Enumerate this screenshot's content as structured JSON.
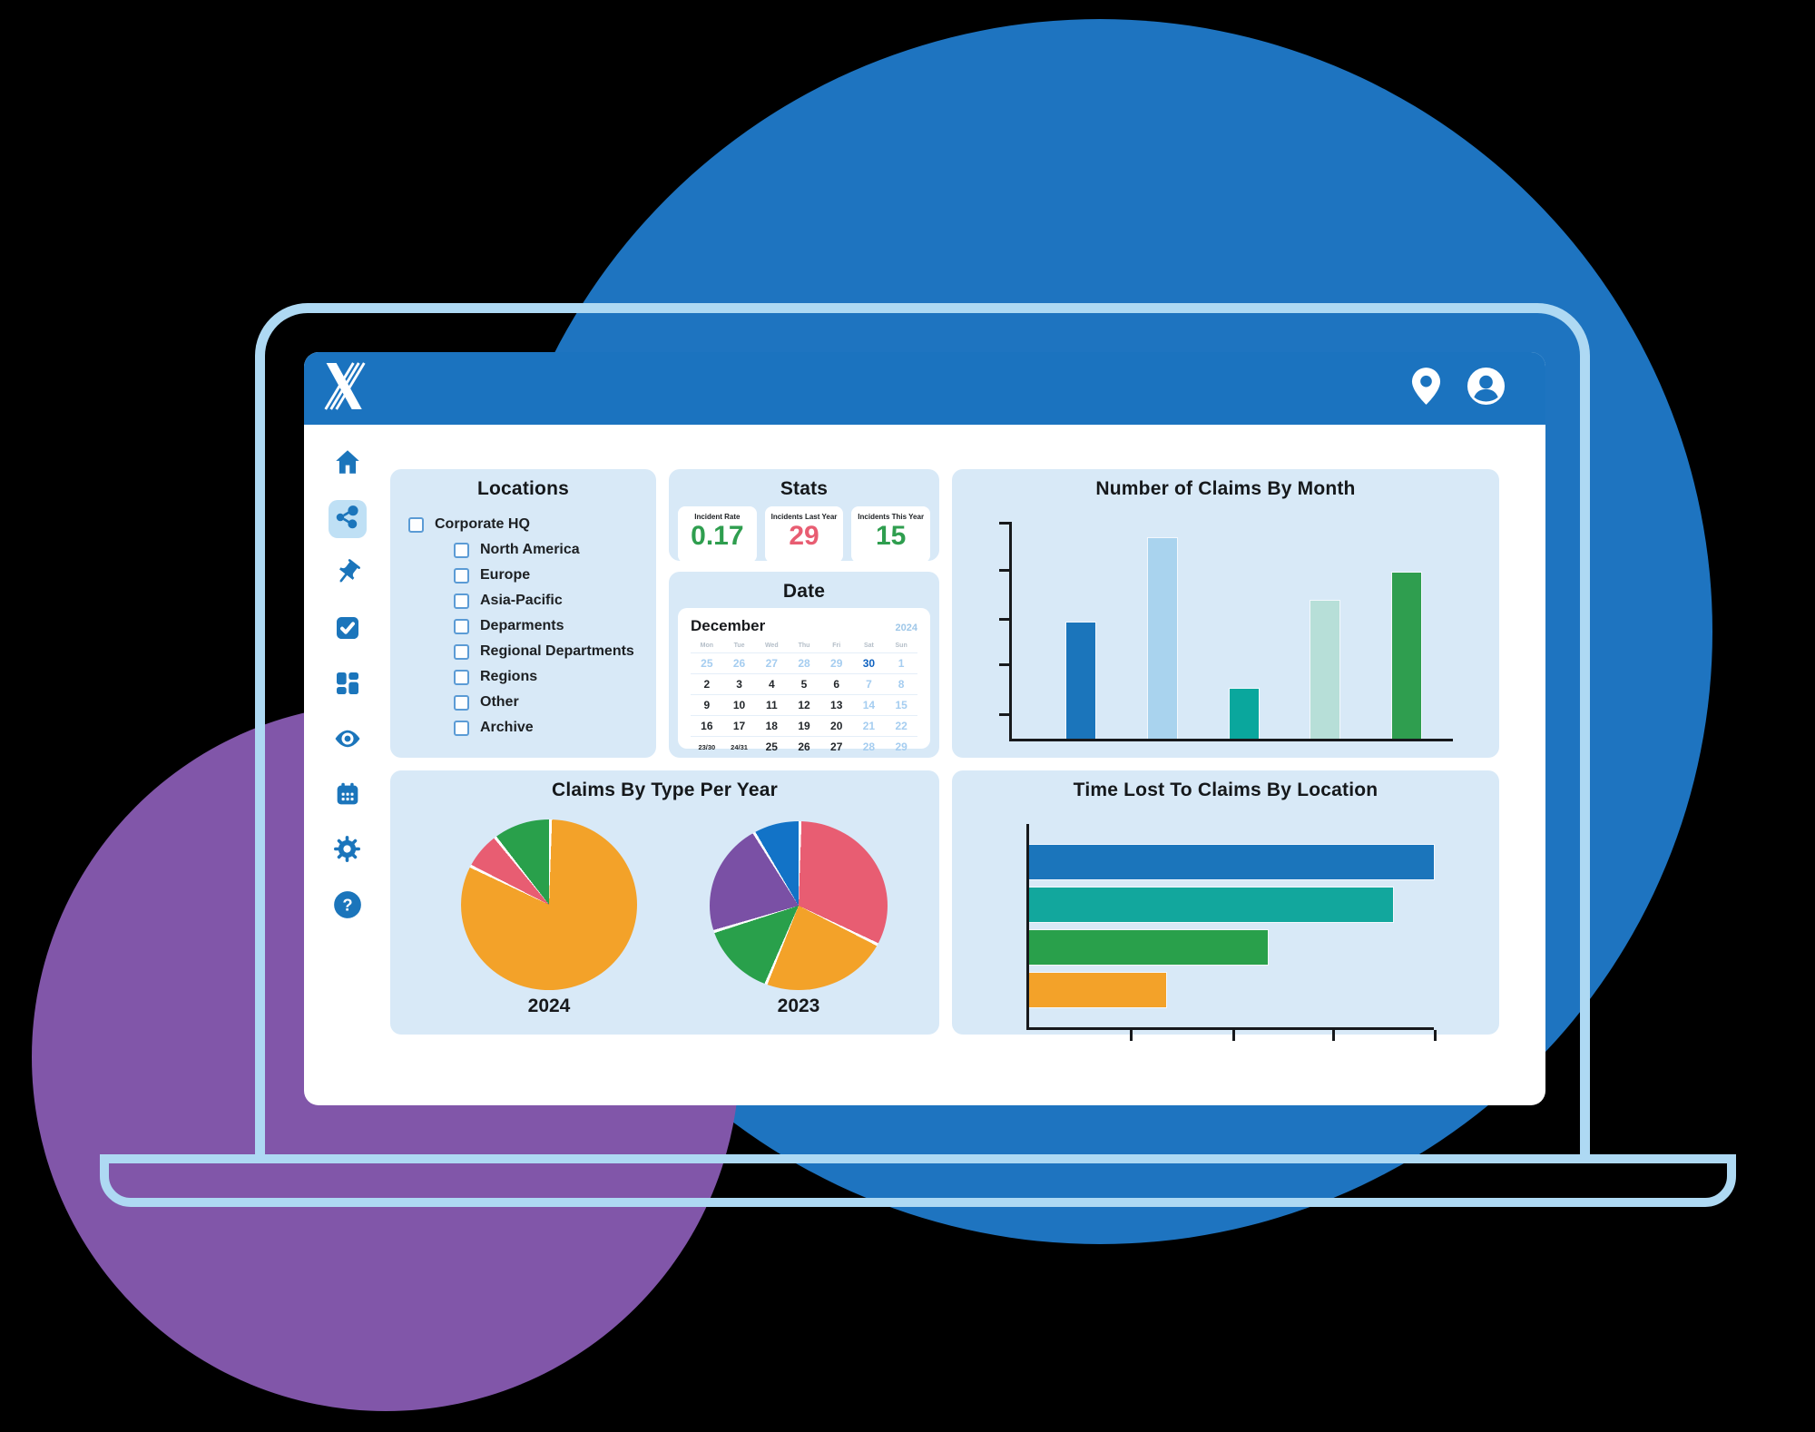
{
  "header": {
    "logo": "X-logo",
    "icons": [
      "location-pin",
      "account"
    ]
  },
  "sidebar": {
    "active_item": "share",
    "items": [
      {
        "icon": "home"
      },
      {
        "icon": "share"
      },
      {
        "icon": "pushpin"
      },
      {
        "icon": "checkbox"
      },
      {
        "icon": "dashboard-grid"
      },
      {
        "icon": "eye"
      },
      {
        "icon": "calendar"
      },
      {
        "icon": "gear"
      },
      {
        "icon": "help"
      }
    ]
  },
  "locations": {
    "title": "Locations",
    "items": [
      {
        "label": "Corporate HQ",
        "level": 1,
        "checked": false
      },
      {
        "label": "North America",
        "level": 2,
        "checked": false
      },
      {
        "label": "Europe",
        "level": 2,
        "checked": false
      },
      {
        "label": "Asia-Pacific",
        "level": 2,
        "checked": false
      },
      {
        "label": "Deparments",
        "level": 2,
        "checked": false
      },
      {
        "label": "Regional Departments",
        "level": 2,
        "checked": false
      },
      {
        "label": "Regions",
        "level": 2,
        "checked": false
      },
      {
        "label": "Other",
        "level": 2,
        "checked": false
      },
      {
        "label": "Archive",
        "level": 2,
        "checked": false
      }
    ]
  },
  "stats": {
    "title": "Stats",
    "cards": [
      {
        "label": "Incident Rate",
        "value": "0.17",
        "color": "#2f9e4f"
      },
      {
        "label": "Incidents Last Year",
        "value": "29",
        "color": "#e85d72"
      },
      {
        "label": "Incidents This Year",
        "value": "15",
        "color": "#2f9e4f"
      }
    ]
  },
  "date": {
    "title": "Date",
    "month": "December",
    "year": "2024",
    "day_headers": [
      "Mon",
      "Tue",
      "Wed",
      "Thu",
      "Fri",
      "Sat",
      "Sun"
    ],
    "weeks": [
      [
        {
          "t": "25",
          "k": "m"
        },
        {
          "t": "26",
          "k": "m"
        },
        {
          "t": "27",
          "k": "m"
        },
        {
          "t": "28",
          "k": "m"
        },
        {
          "t": "29",
          "k": "m"
        },
        {
          "t": "30",
          "k": "t"
        },
        {
          "t": "1",
          "k": "m"
        }
      ],
      [
        {
          "t": "2",
          "k": "d"
        },
        {
          "t": "3",
          "k": "d"
        },
        {
          "t": "4",
          "k": "d"
        },
        {
          "t": "5",
          "k": "d"
        },
        {
          "t": "6",
          "k": "d"
        },
        {
          "t": "7",
          "k": "m"
        },
        {
          "t": "8",
          "k": "m"
        }
      ],
      [
        {
          "t": "9",
          "k": "d"
        },
        {
          "t": "10",
          "k": "d"
        },
        {
          "t": "11",
          "k": "d"
        },
        {
          "t": "12",
          "k": "d"
        },
        {
          "t": "13",
          "k": "d"
        },
        {
          "t": "14",
          "k": "m"
        },
        {
          "t": "15",
          "k": "m"
        }
      ],
      [
        {
          "t": "16",
          "k": "d"
        },
        {
          "t": "17",
          "k": "d"
        },
        {
          "t": "18",
          "k": "d"
        },
        {
          "t": "19",
          "k": "d"
        },
        {
          "t": "20",
          "k": "d"
        },
        {
          "t": "21",
          "k": "m"
        },
        {
          "t": "22",
          "k": "m"
        }
      ],
      [
        {
          "t": "23/30",
          "k": "s"
        },
        {
          "t": "24/31",
          "k": "s"
        },
        {
          "t": "25",
          "k": "d"
        },
        {
          "t": "26",
          "k": "d"
        },
        {
          "t": "27",
          "k": "d"
        },
        {
          "t": "28",
          "k": "m"
        },
        {
          "t": "29",
          "k": "m"
        }
      ]
    ],
    "today": "30"
  },
  "chart_data": [
    {
      "type": "bar",
      "orientation": "vertical",
      "title": "Number of Claims By Month",
      "categories": [
        "",
        "",
        "",
        "",
        ""
      ],
      "values": [
        58,
        100,
        25,
        69,
        83
      ],
      "unit": "relative % of tallest bar (axes unlabeled)",
      "colors": [
        "#1b75bb",
        "#a9d3ee",
        "#0aa79d",
        "#b7dfd8",
        "#2f9e4f"
      ],
      "ylim": [
        0,
        100
      ],
      "yticks": 5,
      "grid": false
    },
    {
      "type": "pie",
      "title": "Claims By Type Per Year",
      "pies": [
        {
          "label": "2024",
          "slices": [
            {
              "pct": 82,
              "color": "#f3a229"
            },
            {
              "pct": 7,
              "color": "#e85d72"
            },
            {
              "pct": 11,
              "color": "#29a04b"
            }
          ]
        },
        {
          "label": "2023",
          "slices": [
            {
              "pct": 32,
              "color": "#e85d72"
            },
            {
              "pct": 24,
              "color": "#f3a229"
            },
            {
              "pct": 14,
              "color": "#29a04b"
            },
            {
              "pct": 21,
              "color": "#7a50a5"
            },
            {
              "pct": 9,
              "color": "#1273c7"
            }
          ]
        }
      ],
      "slice_order": "clockwise from 12 o'clock, no legend shown"
    },
    {
      "type": "bar",
      "orientation": "horizontal",
      "title": "Time Lost To Claims By Location",
      "categories": [
        "",
        "",
        "",
        ""
      ],
      "values": [
        100,
        90,
        59,
        34
      ],
      "unit": "relative % of longest bar (axes unlabeled)",
      "colors": [
        "#1b75bb",
        "#12a79d",
        "#29a04b",
        "#f3a229"
      ],
      "xticks": 4,
      "grid": false
    }
  ],
  "colors": {
    "header_blue": "#1b73bf",
    "icon_blue": "#1b75bb",
    "panel_bg": "#d8e9f7",
    "frame_light_blue": "#aed9f3",
    "bg_circle_blue": "#1e74c0",
    "bg_circle_purple": "#8156a9",
    "active_item_bg": "#bfe0f5"
  }
}
